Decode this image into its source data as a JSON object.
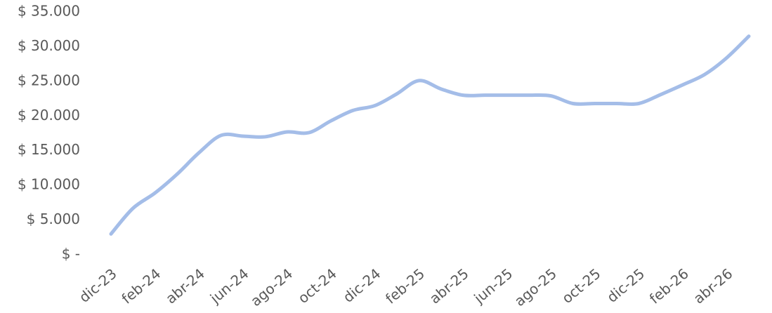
{
  "chart_data": {
    "type": "line",
    "categories": [
      "dic-23",
      null,
      "feb-24",
      null,
      "abr-24",
      null,
      "jun-24",
      null,
      "ago-24",
      null,
      "oct-24",
      null,
      "dic-24",
      null,
      "feb-25",
      null,
      "abr-25",
      null,
      "jun-25",
      null,
      "ago-25",
      null,
      "oct-25",
      null,
      "dic-25",
      null,
      "feb-26",
      null,
      "abr-26",
      null
    ],
    "values": [
      3000,
      6700,
      8900,
      11600,
      14700,
      17200,
      17100,
      17000,
      17700,
      17600,
      19300,
      20800,
      21500,
      23200,
      25100,
      23900,
      23000,
      23000,
      23000,
      23000,
      22900,
      21800,
      21800,
      21800,
      21800,
      23100,
      24500,
      26000,
      28400,
      31500
    ],
    "color": "#a4bde8",
    "ylim": [
      0,
      35000
    ],
    "yticks": [
      {
        "value": 0,
        "label": "$ -"
      },
      {
        "value": 5000,
        "label": "$ 5.000"
      },
      {
        "value": 10000,
        "label": "$ 10.000"
      },
      {
        "value": 15000,
        "label": "$ 15.000"
      },
      {
        "value": 20000,
        "label": "$ 20.000"
      },
      {
        "value": 25000,
        "label": "$ 25.000"
      },
      {
        "value": 30000,
        "label": "$ 30.000"
      },
      {
        "value": 35000,
        "label": "$ 35.000"
      }
    ],
    "grid": false
  }
}
